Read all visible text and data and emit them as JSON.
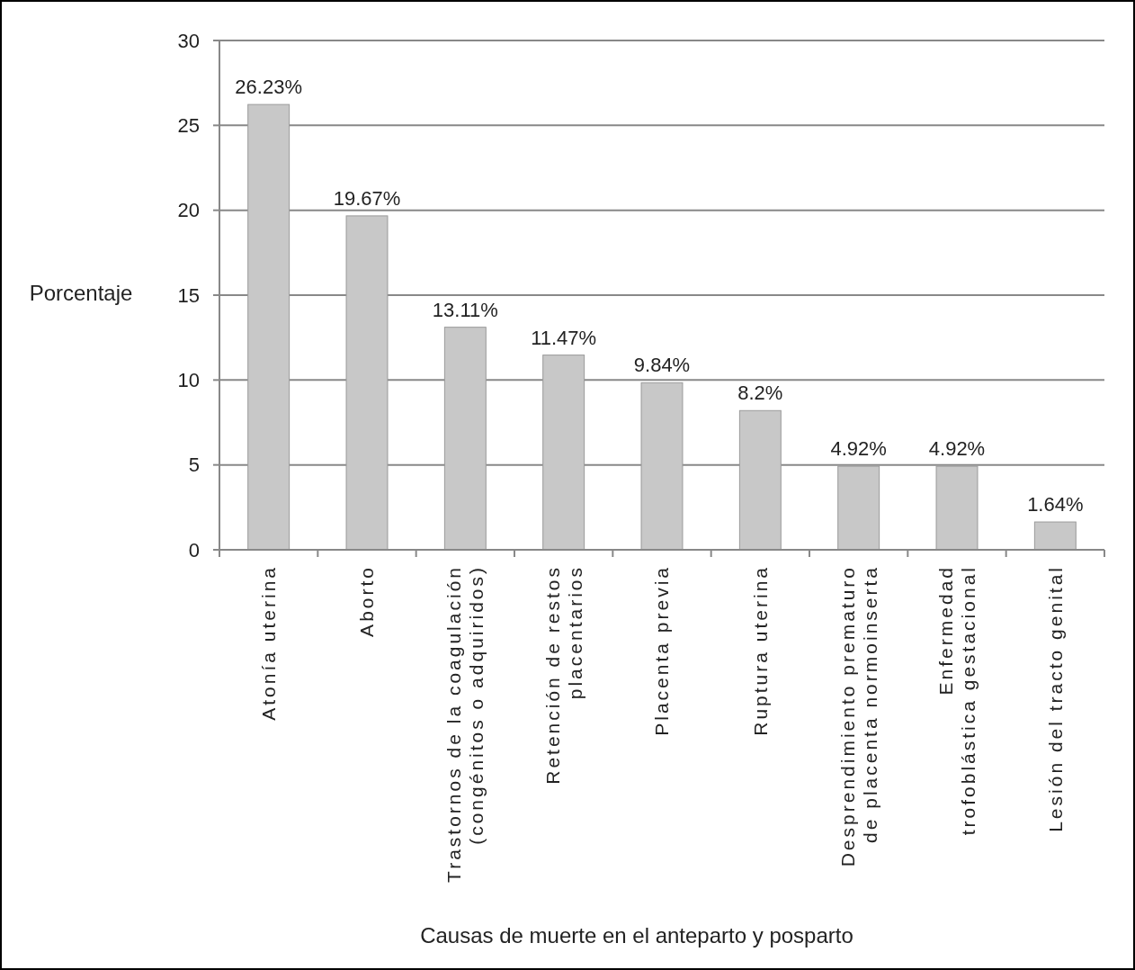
{
  "chart_data": {
    "type": "bar",
    "xlabel": "Causas de muerte en el anteparto y posparto",
    "ylabel": "Porcentaje",
    "categories": [
      "Atonía uterina",
      "Aborto",
      "Trastornos de la coagulación\n(congénitos o adquiridos)",
      "Retención de restos\nplacentarios",
      "Placenta previa",
      "Ruptura uterina",
      "Desprendimiento prematuro\nde placenta normoinserta",
      "Enfermedad\ntrofoblástica gestacional",
      "Lesión del tracto genital"
    ],
    "values": [
      26.23,
      19.67,
      13.11,
      11.47,
      9.84,
      8.2,
      4.92,
      4.92,
      1.64
    ],
    "value_labels": [
      "26.23%",
      "19.67%",
      "13.11%",
      "11.47%",
      "9.84%",
      "8.2%",
      "4.92%",
      "4.92%",
      "1.64%"
    ],
    "color": "#c8c8c8",
    "ylim": [
      0,
      30
    ],
    "yticks": [
      0,
      5,
      10,
      15,
      20,
      25,
      30
    ],
    "grid": "y"
  }
}
